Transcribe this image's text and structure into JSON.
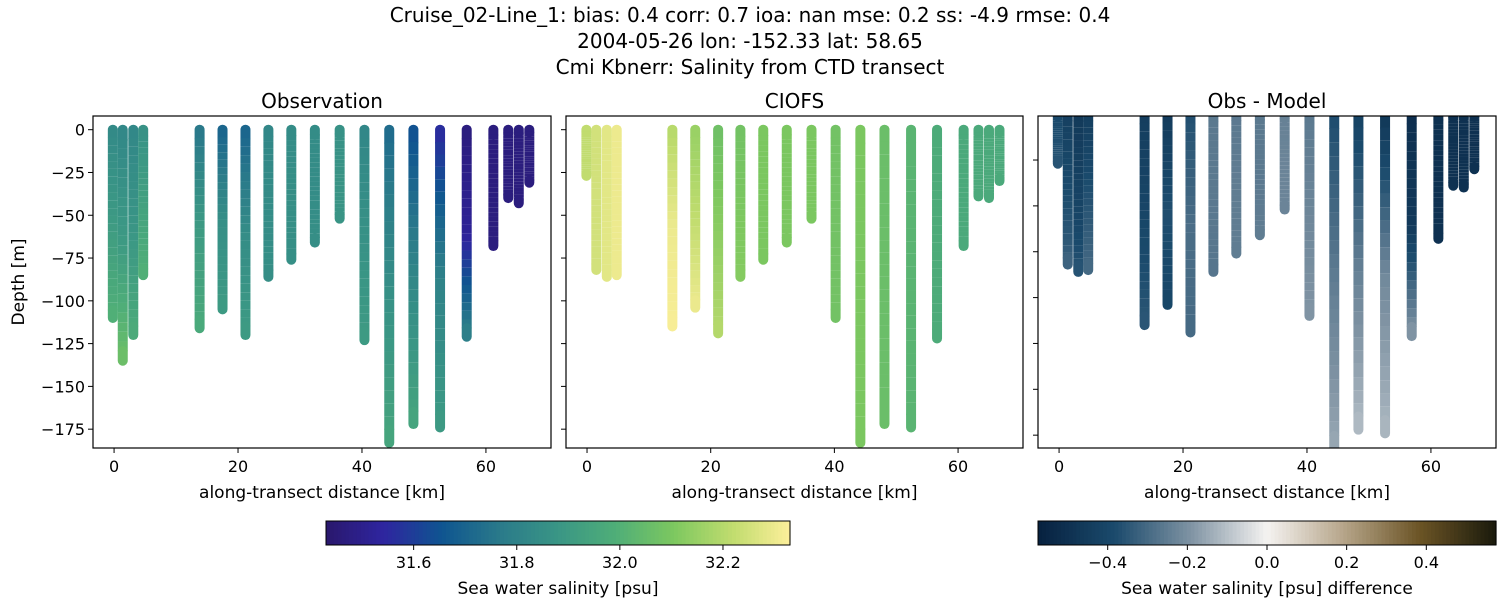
{
  "title_lines": [
    "Cruise_02-Line_1: bias: 0.4  corr: 0.7  ioa: nan  mse: 0.2  ss: -4.9  rmse: 0.4",
    "2004-05-26 lon: -152.33 lat: 58.65",
    "Cmi Kbnerr: Salinity from CTD transect"
  ],
  "chart_data": [
    {
      "type": "scatter",
      "panel": "observation",
      "title": "Observation",
      "xlabel": "along-transect distance [km]",
      "ylabel": "Depth [m]",
      "xlim": [
        -3.4,
        70.5
      ],
      "ylim": [
        -186,
        8
      ],
      "xticks": [
        0,
        20,
        40,
        60
      ],
      "yticks": [
        0,
        -25,
        -50,
        -75,
        -100,
        -125,
        -150,
        -175
      ],
      "colormap": "haline",
      "clim": [
        31.43,
        32.33
      ],
      "casts": [
        {
          "x": -0.2,
          "depth": -110,
          "salinity": [
            31.83,
            31.9,
            32.0
          ]
        },
        {
          "x": 1.4,
          "depth": -135,
          "salinity": [
            31.82,
            31.9,
            32.07
          ]
        },
        {
          "x": 3.1,
          "depth": -120,
          "salinity": [
            31.82,
            31.88,
            31.98
          ]
        },
        {
          "x": 4.7,
          "depth": -85,
          "salinity": [
            31.86,
            31.93,
            32.0
          ]
        },
        {
          "x": 13.8,
          "depth": -116,
          "salinity": [
            31.76,
            31.9,
            31.97
          ]
        },
        {
          "x": 17.5,
          "depth": -105,
          "salinity": [
            31.7,
            31.85,
            31.9
          ]
        },
        {
          "x": 21.2,
          "depth": -120,
          "salinity": [
            31.7,
            31.84,
            31.9
          ]
        },
        {
          "x": 24.9,
          "depth": -86,
          "salinity": [
            31.82,
            31.84,
            31.85
          ]
        },
        {
          "x": 28.6,
          "depth": -76,
          "salinity": [
            31.84,
            31.85,
            31.85
          ]
        },
        {
          "x": 32.4,
          "depth": -66,
          "salinity": [
            31.84,
            31.84,
            31.85
          ]
        },
        {
          "x": 36.4,
          "depth": -52,
          "salinity": [
            31.86,
            31.87,
            31.87
          ]
        },
        {
          "x": 40.4,
          "depth": -123,
          "salinity": [
            31.82,
            31.86,
            31.9
          ]
        },
        {
          "x": 44.4,
          "depth": -183,
          "salinity": [
            31.72,
            31.85,
            31.95
          ]
        },
        {
          "x": 48.3,
          "depth": -172,
          "salinity": [
            31.64,
            31.82,
            31.95
          ]
        },
        {
          "x": 52.6,
          "depth": -174,
          "salinity": [
            31.55,
            31.8,
            31.9
          ]
        },
        {
          "x": 56.9,
          "depth": -121,
          "salinity": [
            31.47,
            31.52,
            31.8
          ]
        },
        {
          "x": 61.2,
          "depth": -68,
          "salinity": [
            31.47,
            31.47,
            31.47
          ]
        },
        {
          "x": 63.6,
          "depth": -40,
          "salinity": [
            31.47,
            31.47,
            31.47
          ]
        },
        {
          "x": 65.3,
          "depth": -43,
          "salinity": [
            31.47,
            31.47,
            31.47
          ]
        },
        {
          "x": 67.0,
          "depth": -31,
          "salinity": [
            31.47,
            31.47,
            31.47
          ]
        }
      ]
    },
    {
      "type": "scatter",
      "panel": "model",
      "title": "CIOFS",
      "xlabel": "along-transect distance [km]",
      "xlim": [
        -3.4,
        70.5
      ],
      "ylim": [
        -186,
        8
      ],
      "xticks": [
        0,
        20,
        40,
        60
      ],
      "yticks": [
        0,
        -25,
        -50,
        -75,
        -100,
        -125,
        -150,
        -175
      ],
      "colormap": "haline",
      "clim": [
        31.43,
        32.33
      ],
      "casts": [
        {
          "x": -0.1,
          "depth": -27,
          "salinity": [
            32.22,
            32.22,
            32.22
          ]
        },
        {
          "x": 1.5,
          "depth": -82,
          "salinity": [
            32.25,
            32.25,
            32.25
          ]
        },
        {
          "x": 3.2,
          "depth": -86,
          "salinity": [
            32.28,
            32.28,
            32.28
          ]
        },
        {
          "x": 4.8,
          "depth": -85,
          "salinity": [
            32.3,
            32.3,
            32.3
          ]
        },
        {
          "x": 13.8,
          "depth": -115,
          "salinity": [
            32.2,
            32.3,
            32.32
          ]
        },
        {
          "x": 17.5,
          "depth": -104,
          "salinity": [
            32.15,
            32.22,
            32.3
          ]
        },
        {
          "x": 21.2,
          "depth": -119,
          "salinity": [
            32.07,
            32.13,
            32.2
          ]
        },
        {
          "x": 24.8,
          "depth": -86,
          "salinity": [
            32.08,
            32.1,
            32.12
          ]
        },
        {
          "x": 28.5,
          "depth": -76,
          "salinity": [
            32.1,
            32.1,
            32.1
          ]
        },
        {
          "x": 32.3,
          "depth": -66,
          "salinity": [
            32.1,
            32.1,
            32.1
          ]
        },
        {
          "x": 36.3,
          "depth": -52,
          "salinity": [
            32.1,
            32.1,
            32.1
          ]
        },
        {
          "x": 40.2,
          "depth": -110,
          "salinity": [
            32.08,
            32.08,
            32.08
          ]
        },
        {
          "x": 44.2,
          "depth": -183,
          "salinity": [
            32.1,
            32.1,
            32.1
          ]
        },
        {
          "x": 48.1,
          "depth": -172,
          "salinity": [
            32.06,
            32.06,
            32.06
          ]
        },
        {
          "x": 52.4,
          "depth": -174,
          "salinity": [
            32.02,
            32.02,
            32.02
          ]
        },
        {
          "x": 56.6,
          "depth": -122,
          "salinity": [
            31.98,
            31.98,
            31.98
          ]
        },
        {
          "x": 60.9,
          "depth": -68,
          "salinity": [
            31.97,
            31.97,
            31.97
          ]
        },
        {
          "x": 63.3,
          "depth": -39,
          "salinity": [
            31.97,
            31.97,
            31.97
          ]
        },
        {
          "x": 65.0,
          "depth": -40,
          "salinity": [
            31.97,
            31.97,
            31.97
          ]
        },
        {
          "x": 66.7,
          "depth": -30,
          "salinity": [
            31.97,
            31.97,
            31.97
          ]
        }
      ]
    },
    {
      "type": "scatter",
      "panel": "difference",
      "title": "Obs - Model",
      "xlabel": "along-transect distance [km]",
      "xlim": [
        -3.4,
        70.5
      ],
      "ylim": [
        -182,
        -1
      ],
      "xticks": [
        0,
        20,
        40,
        60
      ],
      "yticks": [
        -25,
        -50,
        -75,
        -100,
        -125,
        -150,
        -175
      ],
      "colormap": "diff",
      "clim": [
        -0.575,
        0.575
      ]
    }
  ],
  "colorbars": [
    {
      "label": "Sea water salinity [psu]",
      "ticks": [
        "31.6",
        "31.8",
        "32.0",
        "32.2"
      ],
      "tick_values": [
        31.6,
        31.8,
        32.0,
        32.2
      ],
      "range": [
        31.43,
        32.33
      ],
      "cmap": "haline"
    },
    {
      "label": "Sea water salinity [psu] difference",
      "ticks": [
        "−0.4",
        "−0.2",
        "0.0",
        "0.2",
        "0.4"
      ],
      "tick_values": [
        -0.4,
        -0.2,
        0.0,
        0.2,
        0.4
      ],
      "range": [
        -0.575,
        0.575
      ],
      "cmap": "diff"
    }
  ],
  "colormaps": {
    "haline": [
      "#2a186c",
      "#2e25a0",
      "#0f5590",
      "#2a7a8a",
      "#3a9685",
      "#4fae78",
      "#7dc85f",
      "#c0dc6e",
      "#fdef9a"
    ],
    "diff": [
      "#07213f",
      "#1a4a6c",
      "#7f93a3",
      "#f5f3f1",
      "#b6a58a",
      "#6b5425",
      "#1a1a0c"
    ]
  }
}
